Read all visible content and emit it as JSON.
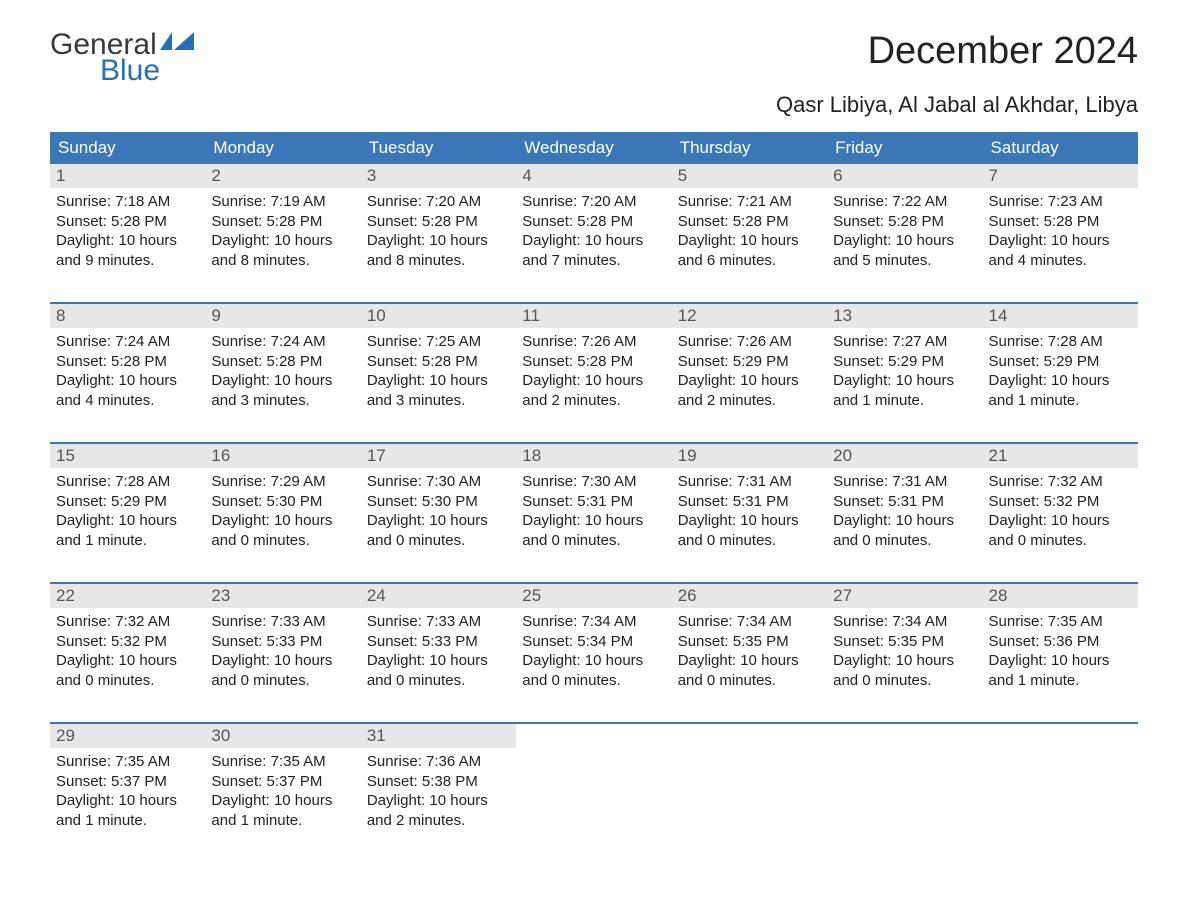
{
  "logo": {
    "text1": "General",
    "text2": "Blue",
    "flag_color": "#2a6fb5"
  },
  "title": "December 2024",
  "location": "Qasr Libiya, Al Jabal al Akhdar, Libya",
  "colors": {
    "header_bg": "#3b77b7",
    "header_text": "#ffffff",
    "daynum_bg": "#e7e7e7",
    "daynum_text": "#555555",
    "body_text": "#222222",
    "border": "#3b77b7",
    "page_bg": "#ffffff"
  },
  "day_headers": [
    "Sunday",
    "Monday",
    "Tuesday",
    "Wednesday",
    "Thursday",
    "Friday",
    "Saturday"
  ],
  "weeks": [
    [
      {
        "n": "1",
        "sr": "Sunrise: 7:18 AM",
        "ss": "Sunset: 5:28 PM",
        "d1": "Daylight: 10 hours",
        "d2": "and 9 minutes."
      },
      {
        "n": "2",
        "sr": "Sunrise: 7:19 AM",
        "ss": "Sunset: 5:28 PM",
        "d1": "Daylight: 10 hours",
        "d2": "and 8 minutes."
      },
      {
        "n": "3",
        "sr": "Sunrise: 7:20 AM",
        "ss": "Sunset: 5:28 PM",
        "d1": "Daylight: 10 hours",
        "d2": "and 8 minutes."
      },
      {
        "n": "4",
        "sr": "Sunrise: 7:20 AM",
        "ss": "Sunset: 5:28 PM",
        "d1": "Daylight: 10 hours",
        "d2": "and 7 minutes."
      },
      {
        "n": "5",
        "sr": "Sunrise: 7:21 AM",
        "ss": "Sunset: 5:28 PM",
        "d1": "Daylight: 10 hours",
        "d2": "and 6 minutes."
      },
      {
        "n": "6",
        "sr": "Sunrise: 7:22 AM",
        "ss": "Sunset: 5:28 PM",
        "d1": "Daylight: 10 hours",
        "d2": "and 5 minutes."
      },
      {
        "n": "7",
        "sr": "Sunrise: 7:23 AM",
        "ss": "Sunset: 5:28 PM",
        "d1": "Daylight: 10 hours",
        "d2": "and 4 minutes."
      }
    ],
    [
      {
        "n": "8",
        "sr": "Sunrise: 7:24 AM",
        "ss": "Sunset: 5:28 PM",
        "d1": "Daylight: 10 hours",
        "d2": "and 4 minutes."
      },
      {
        "n": "9",
        "sr": "Sunrise: 7:24 AM",
        "ss": "Sunset: 5:28 PM",
        "d1": "Daylight: 10 hours",
        "d2": "and 3 minutes."
      },
      {
        "n": "10",
        "sr": "Sunrise: 7:25 AM",
        "ss": "Sunset: 5:28 PM",
        "d1": "Daylight: 10 hours",
        "d2": "and 3 minutes."
      },
      {
        "n": "11",
        "sr": "Sunrise: 7:26 AM",
        "ss": "Sunset: 5:28 PM",
        "d1": "Daylight: 10 hours",
        "d2": "and 2 minutes."
      },
      {
        "n": "12",
        "sr": "Sunrise: 7:26 AM",
        "ss": "Sunset: 5:29 PM",
        "d1": "Daylight: 10 hours",
        "d2": "and 2 minutes."
      },
      {
        "n": "13",
        "sr": "Sunrise: 7:27 AM",
        "ss": "Sunset: 5:29 PM",
        "d1": "Daylight: 10 hours",
        "d2": "and 1 minute."
      },
      {
        "n": "14",
        "sr": "Sunrise: 7:28 AM",
        "ss": "Sunset: 5:29 PM",
        "d1": "Daylight: 10 hours",
        "d2": "and 1 minute."
      }
    ],
    [
      {
        "n": "15",
        "sr": "Sunrise: 7:28 AM",
        "ss": "Sunset: 5:29 PM",
        "d1": "Daylight: 10 hours",
        "d2": "and 1 minute."
      },
      {
        "n": "16",
        "sr": "Sunrise: 7:29 AM",
        "ss": "Sunset: 5:30 PM",
        "d1": "Daylight: 10 hours",
        "d2": "and 0 minutes."
      },
      {
        "n": "17",
        "sr": "Sunrise: 7:30 AM",
        "ss": "Sunset: 5:30 PM",
        "d1": "Daylight: 10 hours",
        "d2": "and 0 minutes."
      },
      {
        "n": "18",
        "sr": "Sunrise: 7:30 AM",
        "ss": "Sunset: 5:31 PM",
        "d1": "Daylight: 10 hours",
        "d2": "and 0 minutes."
      },
      {
        "n": "19",
        "sr": "Sunrise: 7:31 AM",
        "ss": "Sunset: 5:31 PM",
        "d1": "Daylight: 10 hours",
        "d2": "and 0 minutes."
      },
      {
        "n": "20",
        "sr": "Sunrise: 7:31 AM",
        "ss": "Sunset: 5:31 PM",
        "d1": "Daylight: 10 hours",
        "d2": "and 0 minutes."
      },
      {
        "n": "21",
        "sr": "Sunrise: 7:32 AM",
        "ss": "Sunset: 5:32 PM",
        "d1": "Daylight: 10 hours",
        "d2": "and 0 minutes."
      }
    ],
    [
      {
        "n": "22",
        "sr": "Sunrise: 7:32 AM",
        "ss": "Sunset: 5:32 PM",
        "d1": "Daylight: 10 hours",
        "d2": "and 0 minutes."
      },
      {
        "n": "23",
        "sr": "Sunrise: 7:33 AM",
        "ss": "Sunset: 5:33 PM",
        "d1": "Daylight: 10 hours",
        "d2": "and 0 minutes."
      },
      {
        "n": "24",
        "sr": "Sunrise: 7:33 AM",
        "ss": "Sunset: 5:33 PM",
        "d1": "Daylight: 10 hours",
        "d2": "and 0 minutes."
      },
      {
        "n": "25",
        "sr": "Sunrise: 7:34 AM",
        "ss": "Sunset: 5:34 PM",
        "d1": "Daylight: 10 hours",
        "d2": "and 0 minutes."
      },
      {
        "n": "26",
        "sr": "Sunrise: 7:34 AM",
        "ss": "Sunset: 5:35 PM",
        "d1": "Daylight: 10 hours",
        "d2": "and 0 minutes."
      },
      {
        "n": "27",
        "sr": "Sunrise: 7:34 AM",
        "ss": "Sunset: 5:35 PM",
        "d1": "Daylight: 10 hours",
        "d2": "and 0 minutes."
      },
      {
        "n": "28",
        "sr": "Sunrise: 7:35 AM",
        "ss": "Sunset: 5:36 PM",
        "d1": "Daylight: 10 hours",
        "d2": "and 1 minute."
      }
    ],
    [
      {
        "n": "29",
        "sr": "Sunrise: 7:35 AM",
        "ss": "Sunset: 5:37 PM",
        "d1": "Daylight: 10 hours",
        "d2": "and 1 minute."
      },
      {
        "n": "30",
        "sr": "Sunrise: 7:35 AM",
        "ss": "Sunset: 5:37 PM",
        "d1": "Daylight: 10 hours",
        "d2": "and 1 minute."
      },
      {
        "n": "31",
        "sr": "Sunrise: 7:36 AM",
        "ss": "Sunset: 5:38 PM",
        "d1": "Daylight: 10 hours",
        "d2": "and 2 minutes."
      },
      {
        "empty": true
      },
      {
        "empty": true
      },
      {
        "empty": true
      },
      {
        "empty": true
      }
    ]
  ]
}
